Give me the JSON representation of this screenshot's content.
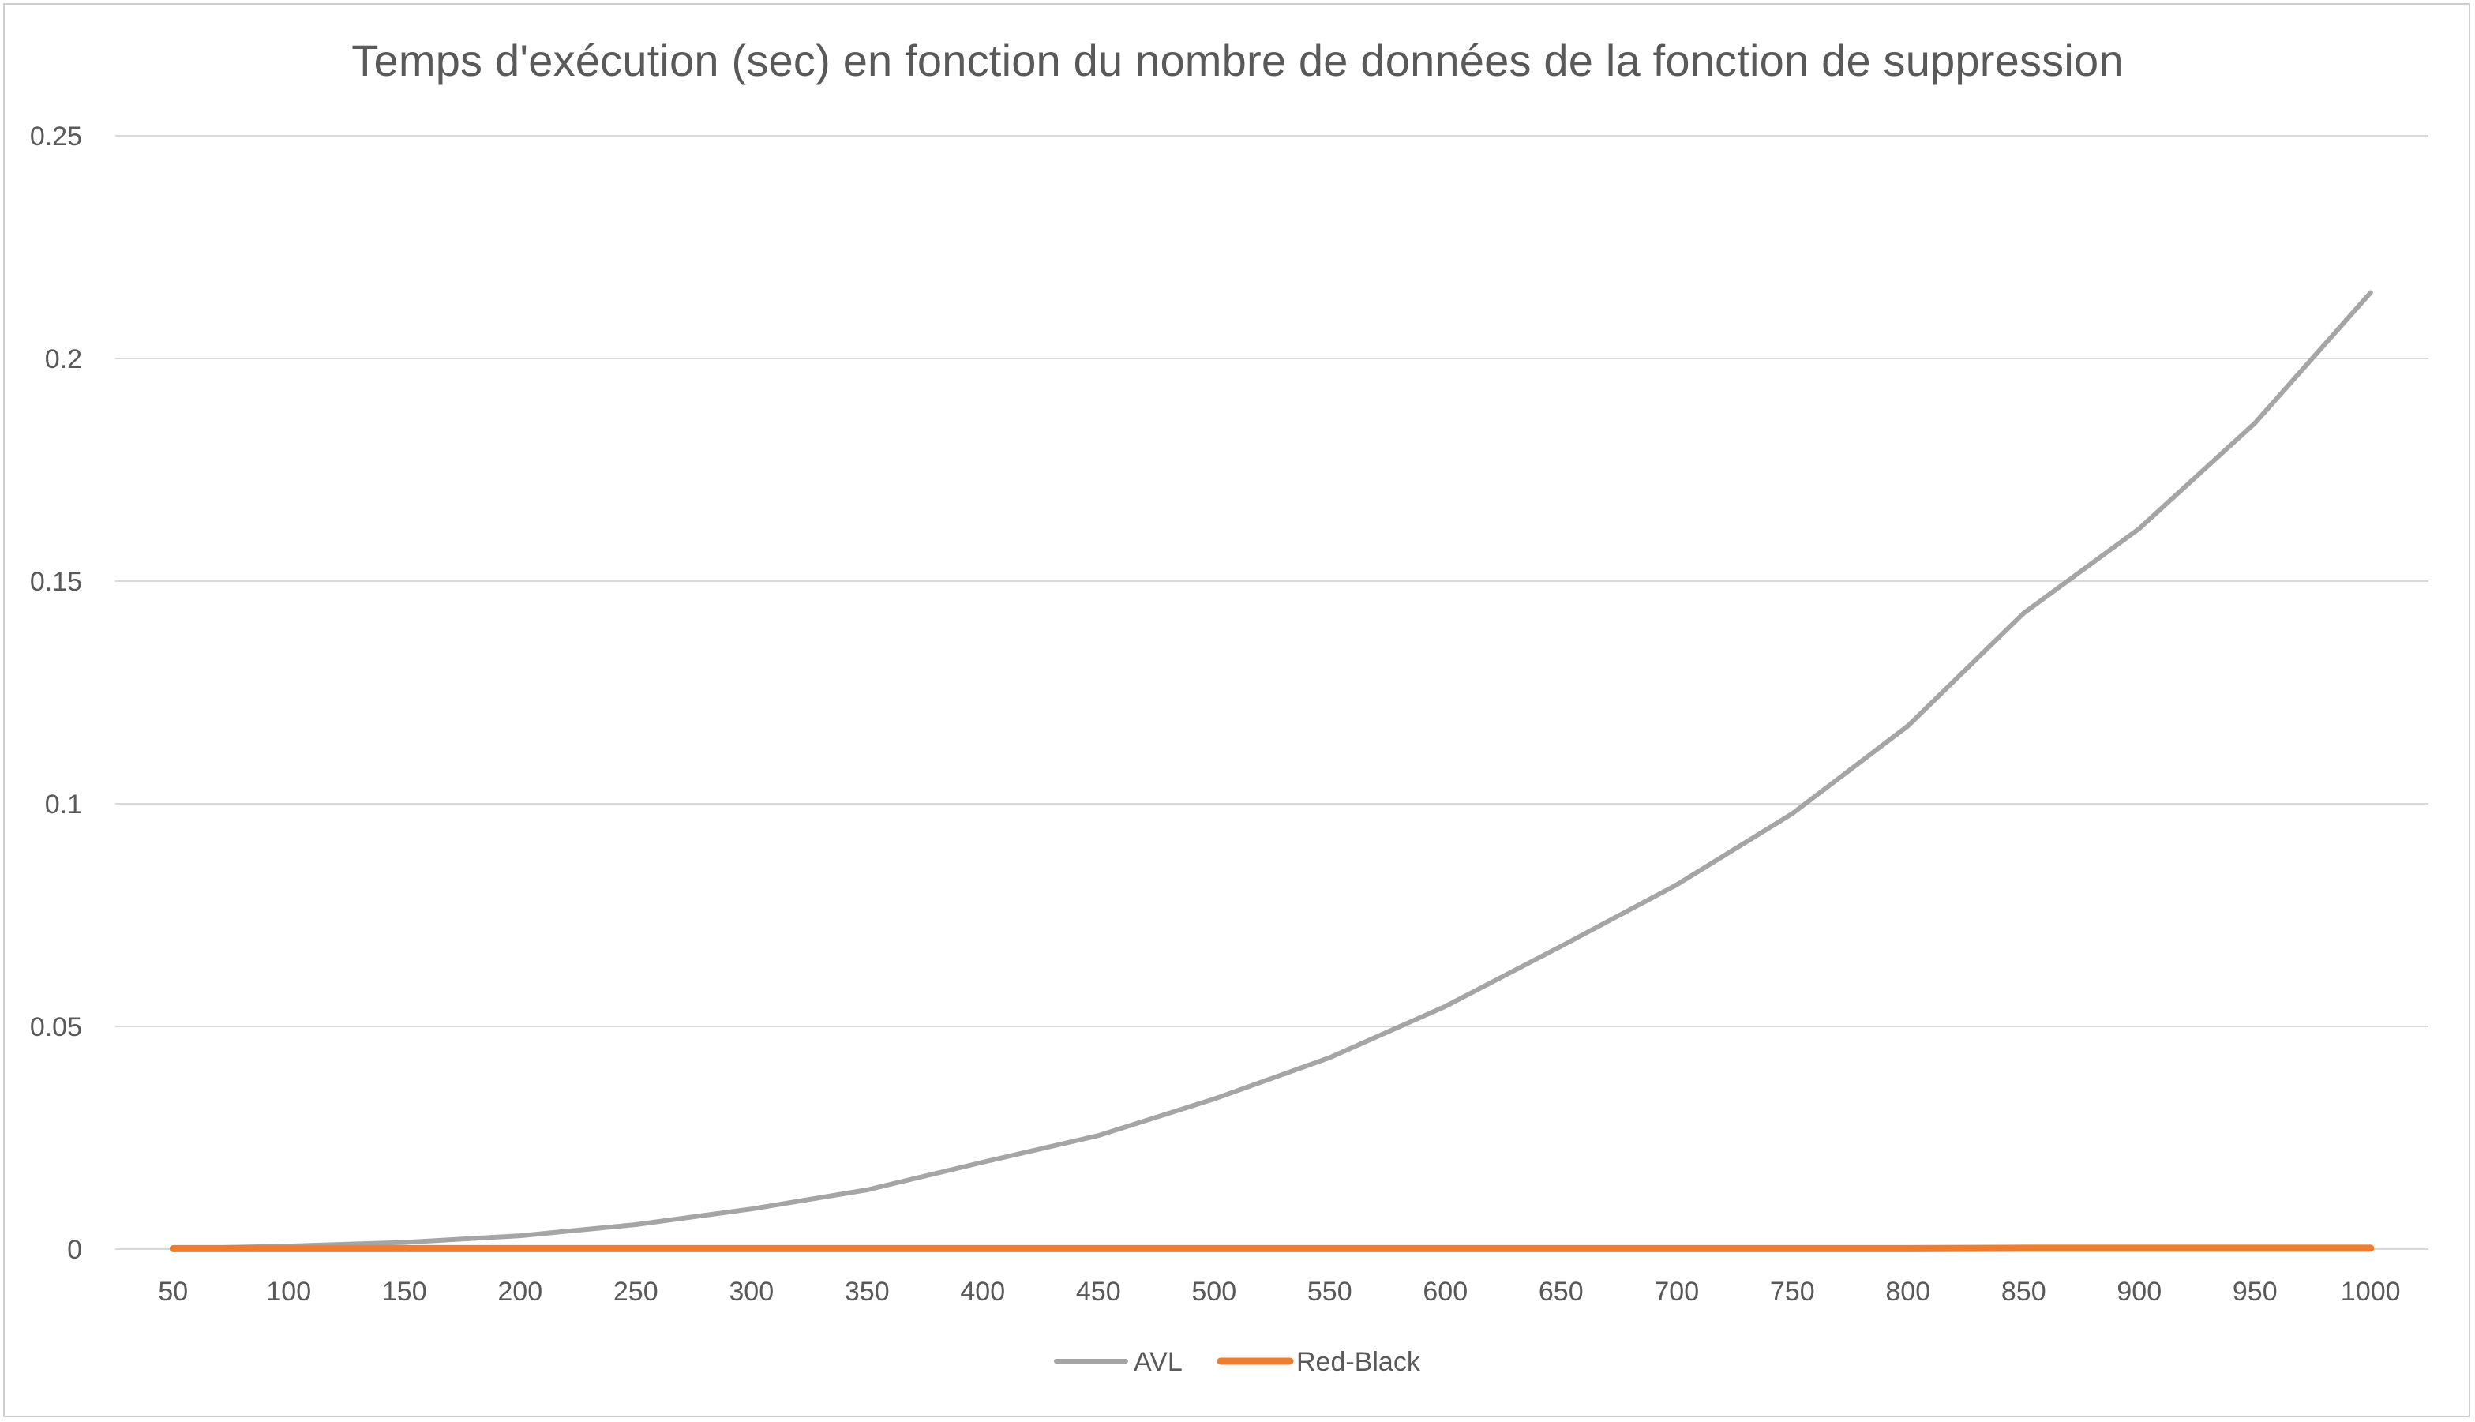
{
  "chart_data": {
    "type": "line",
    "title": "Temps d'exécution (sec) en fonction du nombre de données de la fonction de suppression",
    "xlabel": "",
    "ylabel": "",
    "categories": [
      "50",
      "100",
      "150",
      "200",
      "250",
      "300",
      "350",
      "400",
      "450",
      "500",
      "550",
      "600",
      "650",
      "700",
      "750",
      "800",
      "850",
      "900",
      "950",
      "1000"
    ],
    "ylim": [
      0,
      0.25
    ],
    "yticks": [
      "0",
      "0.05",
      "0.1",
      "0.15",
      "0.2",
      "0.25"
    ],
    "ytick_values": [
      0,
      0.05,
      0.1,
      0.15,
      0.2,
      0.25
    ],
    "grid": true,
    "legend_position": "bottom",
    "series": [
      {
        "name": "AVL",
        "color": "#a5a5a5",
        "values": [
          0.0001,
          0.0007,
          0.0015,
          0.003,
          0.0055,
          0.009,
          0.0133,
          0.0195,
          0.0255,
          0.0337,
          0.043,
          0.0545,
          0.068,
          0.0818,
          0.0978,
          0.1175,
          0.1428,
          0.1618,
          0.1855,
          0.2148
        ]
      },
      {
        "name": "Red-Black",
        "color": "#ed7d31",
        "values": [
          0.0001,
          0.0001,
          0.0001,
          0.0001,
          0.0001,
          0.0001,
          0.0001,
          0.0001,
          0.0001,
          0.0001,
          0.0001,
          0.0001,
          0.0001,
          0.0001,
          0.0001,
          0.0001,
          0.0002,
          0.0002,
          0.0002,
          0.0002
        ]
      }
    ]
  }
}
